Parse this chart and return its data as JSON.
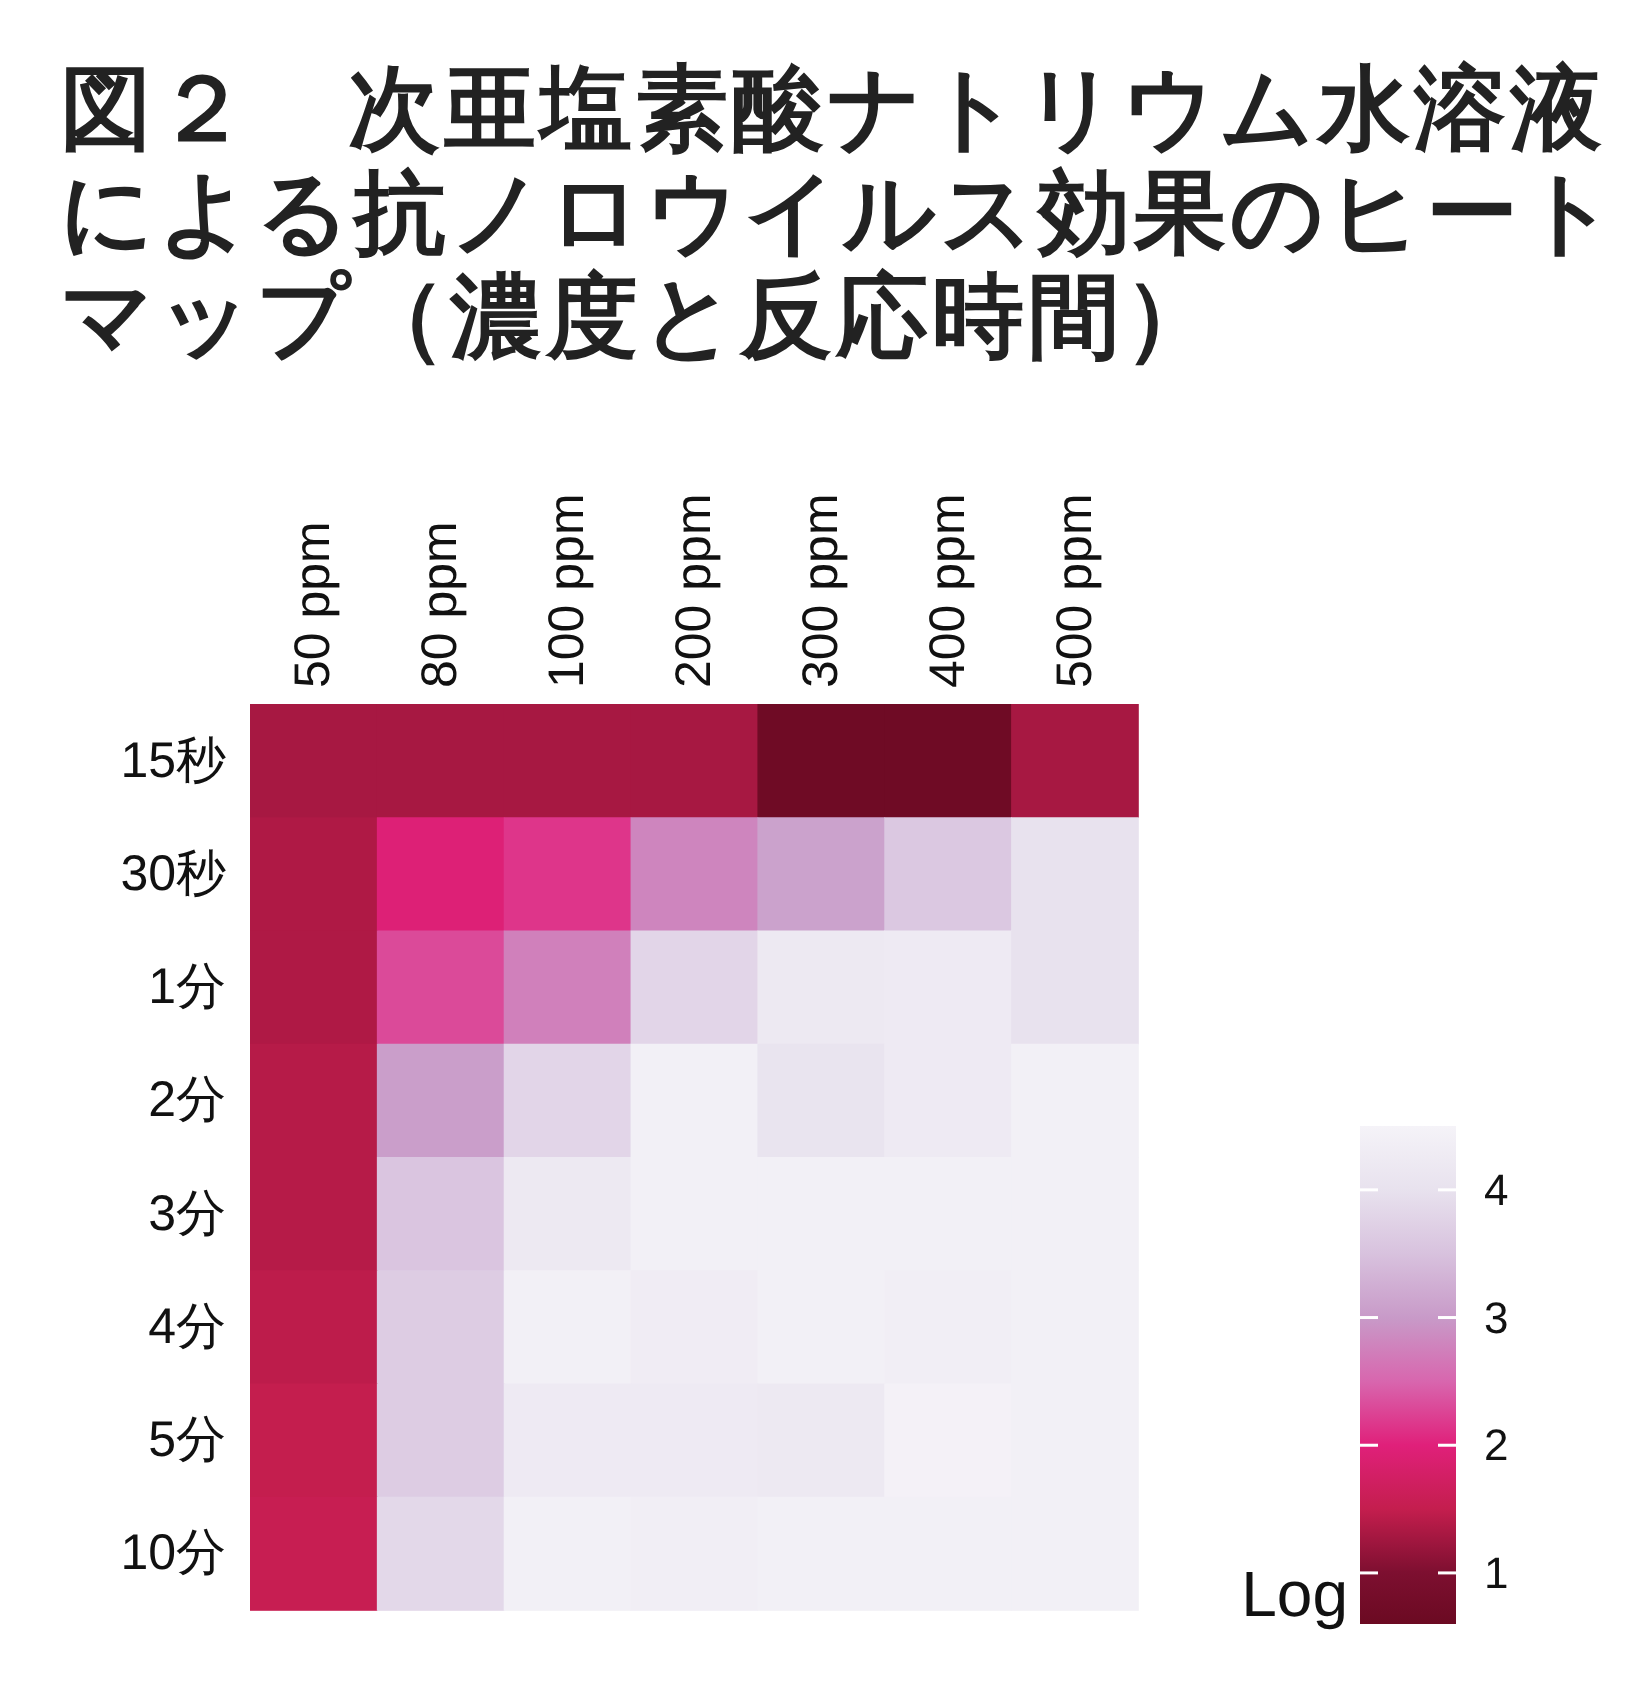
{
  "chart_data": {
    "type": "heatmap",
    "title": "図２　次亜塩素酸ナトリウム水溶液による抗ノロウイルス効果のヒートマップ（濃度と反応時間）",
    "categories": [
      "50 ppm",
      "80 ppm",
      "100 ppm",
      "200 ppm",
      "300 ppm",
      "400 ppm",
      "500 ppm"
    ],
    "y_categories": [
      "15秒",
      "30秒",
      "1分",
      "2分",
      "3分",
      "4分",
      "5分",
      "10分"
    ],
    "cells": [
      [
        1.3,
        1.3,
        1.3,
        1.3,
        0.7,
        0.7,
        1.3
      ],
      [
        1.35,
        1.95,
        2.15,
        2.8,
        3.1,
        3.6,
        4.0
      ],
      [
        1.35,
        2.3,
        2.75,
        3.8,
        4.2,
        4.25,
        4.0
      ],
      [
        1.4,
        3.05,
        3.8,
        4.4,
        4.05,
        4.25,
        4.4
      ],
      [
        1.4,
        3.55,
        4.2,
        4.4,
        4.4,
        4.4,
        4.4
      ],
      [
        1.45,
        3.65,
        4.4,
        4.3,
        4.4,
        4.35,
        4.4
      ],
      [
        1.5,
        3.65,
        4.25,
        4.25,
        4.2,
        4.45,
        4.4
      ],
      [
        1.55,
        3.85,
        4.4,
        4.35,
        4.4,
        4.4,
        4.4
      ]
    ],
    "clabel": "Log",
    "clim": [
      0.6,
      4.5
    ],
    "cticks": [
      1,
      2,
      3,
      4
    ]
  }
}
